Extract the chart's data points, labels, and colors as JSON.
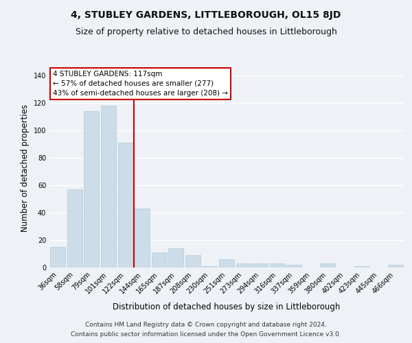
{
  "title": "4, STUBLEY GARDENS, LITTLEBOROUGH, OL15 8JD",
  "subtitle": "Size of property relative to detached houses in Littleborough",
  "xlabel": "Distribution of detached houses by size in Littleborough",
  "ylabel": "Number of detached properties",
  "categories": [
    "36sqm",
    "58sqm",
    "79sqm",
    "101sqm",
    "122sqm",
    "144sqm",
    "165sqm",
    "187sqm",
    "208sqm",
    "230sqm",
    "251sqm",
    "273sqm",
    "294sqm",
    "316sqm",
    "337sqm",
    "359sqm",
    "380sqm",
    "402sqm",
    "423sqm",
    "445sqm",
    "466sqm"
  ],
  "values": [
    15,
    57,
    114,
    118,
    91,
    43,
    11,
    14,
    9,
    1,
    6,
    3,
    3,
    3,
    2,
    0,
    3,
    0,
    1,
    0,
    2
  ],
  "bar_color": "#ccdce8",
  "bar_edge_color": "#b0ccd8",
  "vline_x": 4.5,
  "vline_color": "#cc0000",
  "annotation_title": "4 STUBLEY GARDENS: 117sqm",
  "annotation_line1": "← 57% of detached houses are smaller (277)",
  "annotation_line2": "43% of semi-detached houses are larger (208) →",
  "annotation_box_color": "#ffffff",
  "annotation_box_edge": "#cc0000",
  "ylim": [
    0,
    145
  ],
  "footer1": "Contains HM Land Registry data © Crown copyright and database right 2024.",
  "footer2": "Contains public sector information licensed under the Open Government Licence v3.0.",
  "background_color": "#eef2f7",
  "grid_color": "#ffffff",
  "title_fontsize": 10,
  "subtitle_fontsize": 9,
  "axis_label_fontsize": 8.5,
  "tick_fontsize": 7,
  "footer_fontsize": 6.5
}
